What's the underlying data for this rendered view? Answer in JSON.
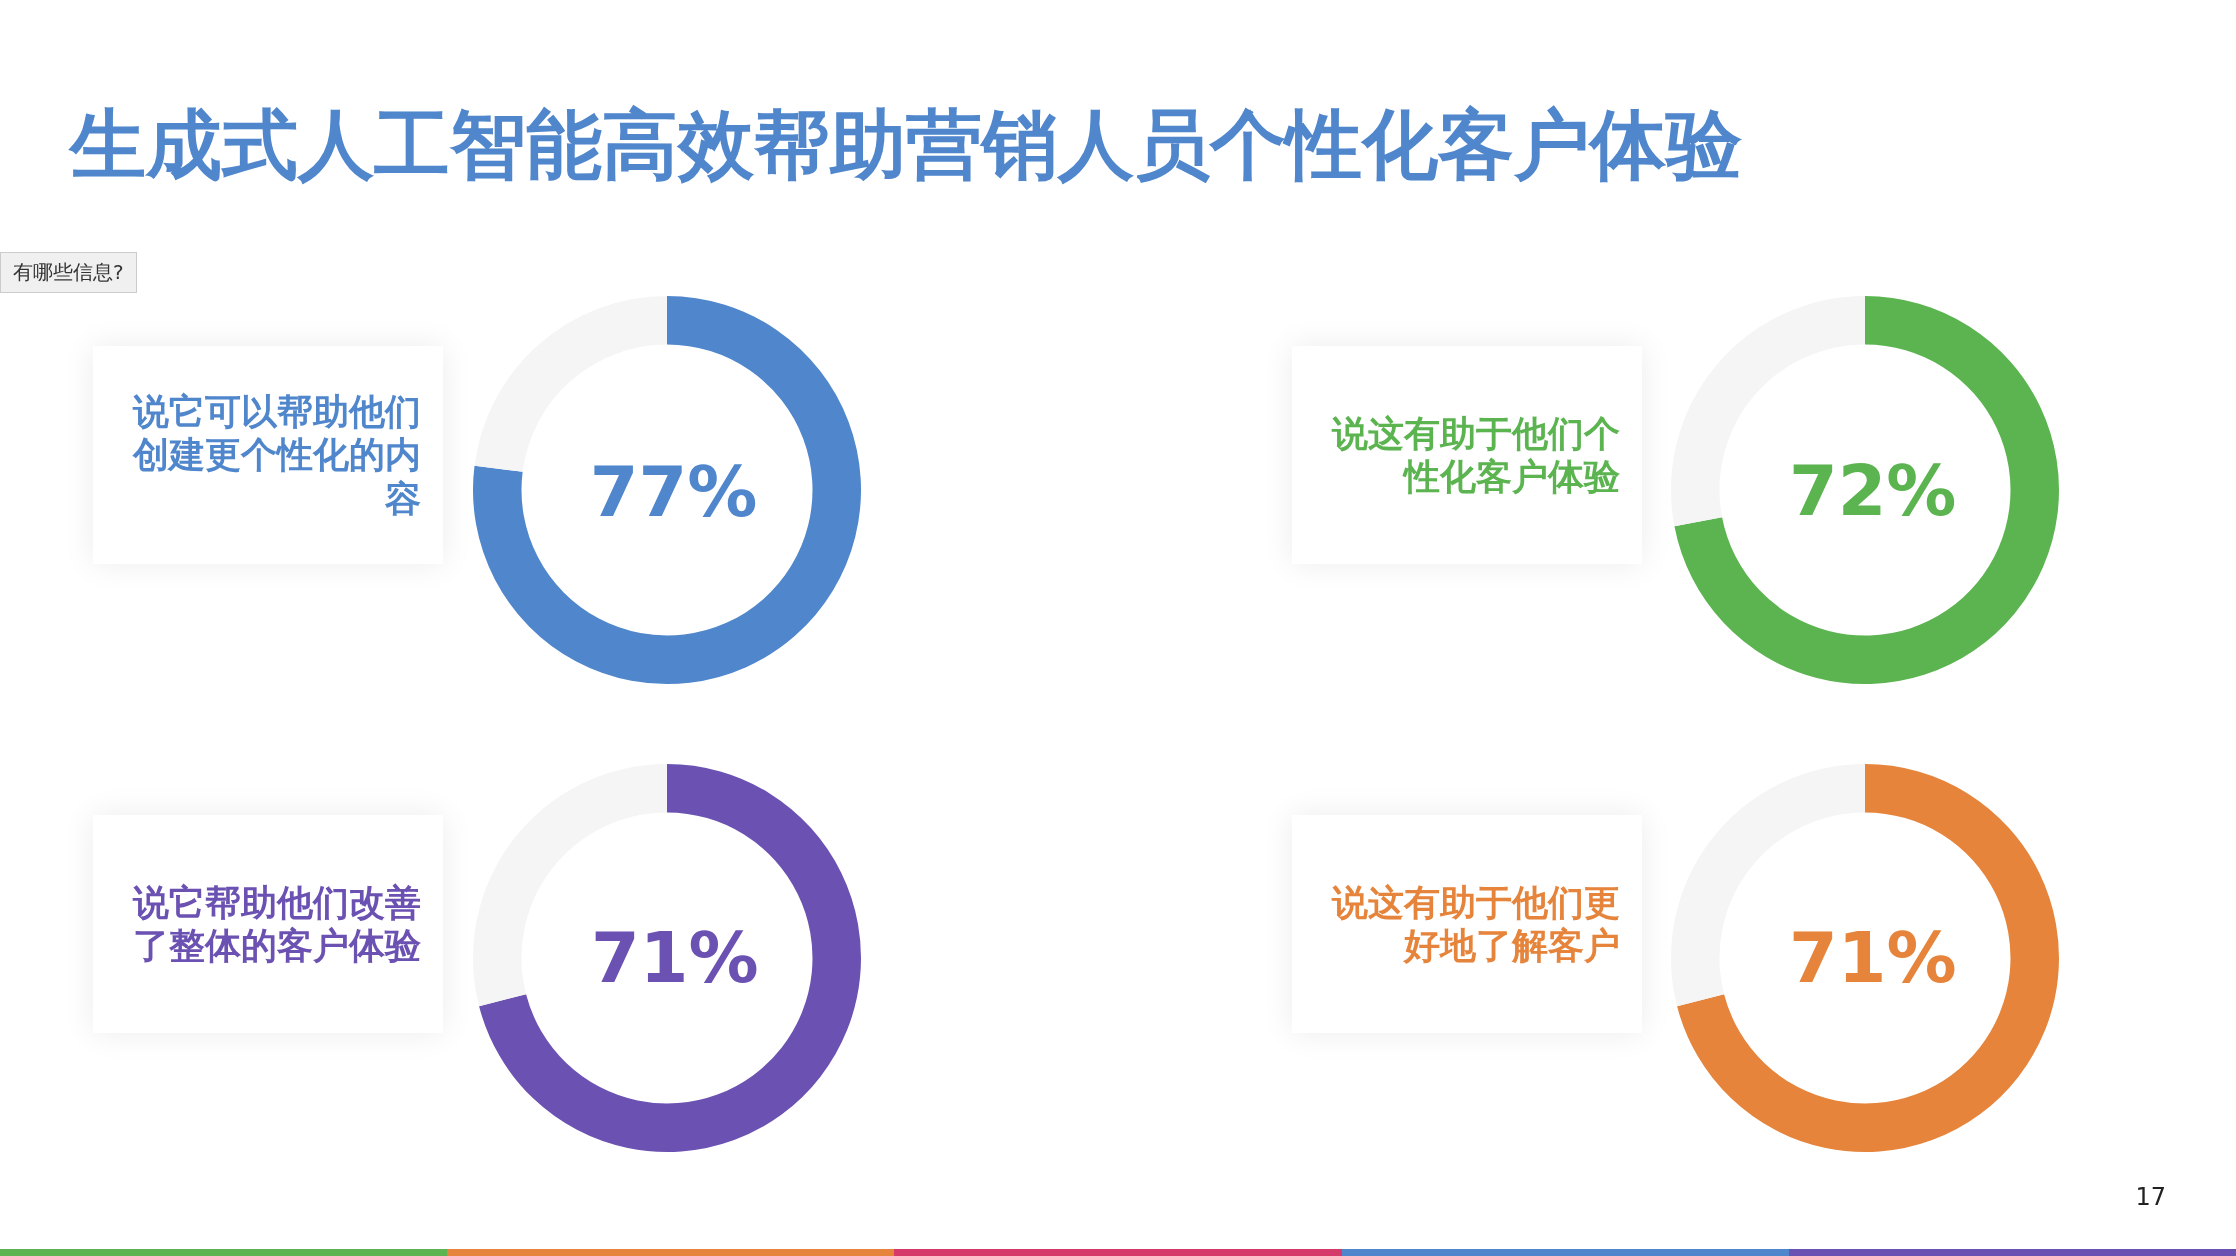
{
  "chart_data": [
    {
      "type": "other",
      "title": "生成式人工智能高效帮助营销人员个性化客户体验",
      "annotations": [
        "有哪些信息?",
        "17"
      ]
    },
    {
      "type": "donut",
      "title": "说它可以帮助他们创建更个性化的内容",
      "categories": [
        null,
        null
      ],
      "values": [
        77,
        23
      ],
      "colors": [
        "#4f86cc",
        "#f5f5f5"
      ],
      "value_labels": [
        "77%",
        null
      ],
      "legend": false
    },
    {
      "type": "donut",
      "title": "说这有助于他们个性化客户体验",
      "categories": [
        null,
        null
      ],
      "values": [
        72,
        28
      ],
      "colors": [
        "#5bb450",
        "#f5f5f5"
      ],
      "value_labels": [
        "72%",
        null
      ],
      "legend": false
    },
    {
      "type": "donut",
      "title": "说它帮助他们改善了整体的客户体验",
      "categories": [
        null,
        null
      ],
      "values": [
        71,
        29
      ],
      "colors": [
        "#6b52b2",
        "#f5f5f5"
      ],
      "value_labels": [
        "71%",
        null
      ],
      "legend": false
    },
    {
      "type": "donut",
      "title": "说这有助于他们更好地了解客户",
      "categories": [
        null,
        null
      ],
      "values": [
        71,
        29
      ],
      "colors": [
        "#e5843a",
        "#f5f5f5"
      ],
      "value_labels": [
        "71%",
        null
      ],
      "legend": false
    }
  ]
}
